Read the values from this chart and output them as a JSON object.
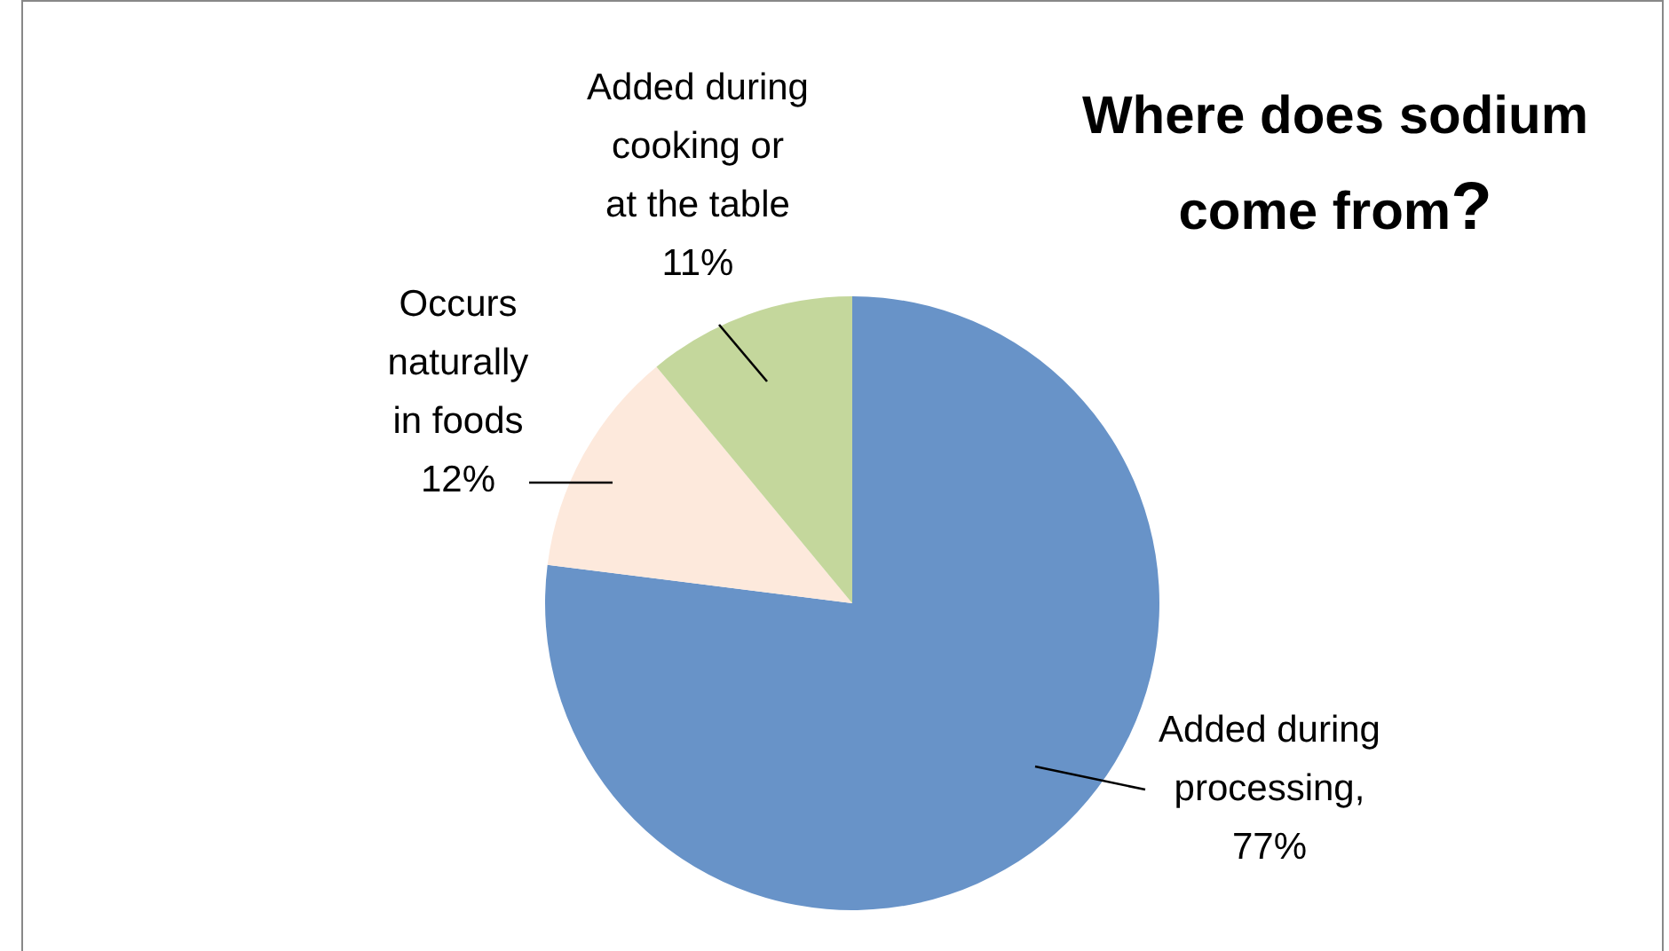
{
  "chart_data": {
    "type": "pie",
    "title": "Where does sodium come from?",
    "categories": [
      "Added during processing",
      "Occurs naturally in foods",
      "Added during cooking or at the table"
    ],
    "values": [
      77,
      12,
      11
    ],
    "colors": [
      "#6893c8",
      "#fde9dc",
      "#c4d79c"
    ],
    "value_labels": [
      ", 77%",
      "12%",
      "11%"
    ]
  }
}
